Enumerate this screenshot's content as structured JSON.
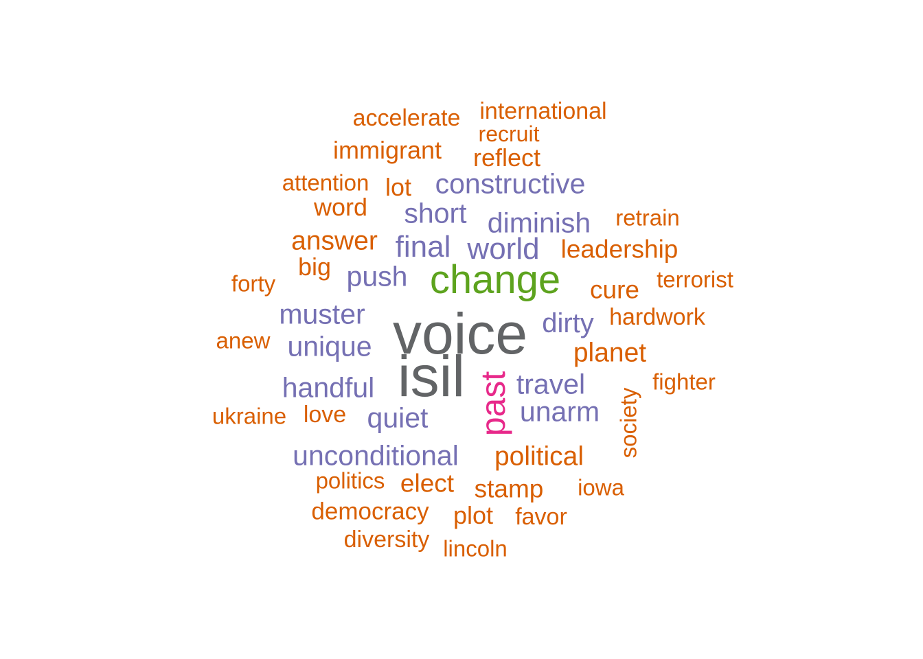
{
  "palette": {
    "orange": "#d95f02",
    "purple": "#7570b3",
    "green": "#5da31e",
    "gray": "#626466",
    "pink": "#e7298a"
  },
  "words": [
    {
      "text": "voice",
      "color": "gray"
    },
    {
      "text": "isil",
      "color": "gray"
    },
    {
      "text": "change",
      "color": "green"
    },
    {
      "text": "past",
      "color": "pink"
    },
    {
      "text": "constructive",
      "color": "purple"
    },
    {
      "text": "diminish",
      "color": "purple"
    },
    {
      "text": "final",
      "color": "purple"
    },
    {
      "text": "world",
      "color": "purple"
    },
    {
      "text": "short",
      "color": "purple"
    },
    {
      "text": "push",
      "color": "purple"
    },
    {
      "text": "muster",
      "color": "purple"
    },
    {
      "text": "unique",
      "color": "purple"
    },
    {
      "text": "dirty",
      "color": "purple"
    },
    {
      "text": "handful",
      "color": "purple"
    },
    {
      "text": "travel",
      "color": "purple"
    },
    {
      "text": "unarm",
      "color": "purple"
    },
    {
      "text": "quiet",
      "color": "purple"
    },
    {
      "text": "unconditional",
      "color": "purple"
    },
    {
      "text": "accelerate",
      "color": "orange"
    },
    {
      "text": "international",
      "color": "orange"
    },
    {
      "text": "recruit",
      "color": "orange"
    },
    {
      "text": "immigrant",
      "color": "orange"
    },
    {
      "text": "reflect",
      "color": "orange"
    },
    {
      "text": "attention",
      "color": "orange"
    },
    {
      "text": "lot",
      "color": "orange"
    },
    {
      "text": "word",
      "color": "orange"
    },
    {
      "text": "retrain",
      "color": "orange"
    },
    {
      "text": "answer",
      "color": "orange"
    },
    {
      "text": "leadership",
      "color": "orange"
    },
    {
      "text": "big",
      "color": "orange"
    },
    {
      "text": "forty",
      "color": "orange"
    },
    {
      "text": "terrorist",
      "color": "orange"
    },
    {
      "text": "cure",
      "color": "orange"
    },
    {
      "text": "hardwork",
      "color": "orange"
    },
    {
      "text": "anew",
      "color": "orange"
    },
    {
      "text": "planet",
      "color": "orange"
    },
    {
      "text": "fighter",
      "color": "orange"
    },
    {
      "text": "society",
      "color": "orange"
    },
    {
      "text": "ukraine",
      "color": "orange"
    },
    {
      "text": "love",
      "color": "orange"
    },
    {
      "text": "political",
      "color": "orange"
    },
    {
      "text": "politics",
      "color": "orange"
    },
    {
      "text": "elect",
      "color": "orange"
    },
    {
      "text": "stamp",
      "color": "orange"
    },
    {
      "text": "iowa",
      "color": "orange"
    },
    {
      "text": "democracy",
      "color": "orange"
    },
    {
      "text": "plot",
      "color": "orange"
    },
    {
      "text": "favor",
      "color": "orange"
    },
    {
      "text": "diversity",
      "color": "orange"
    },
    {
      "text": "lincoln",
      "color": "orange"
    }
  ]
}
